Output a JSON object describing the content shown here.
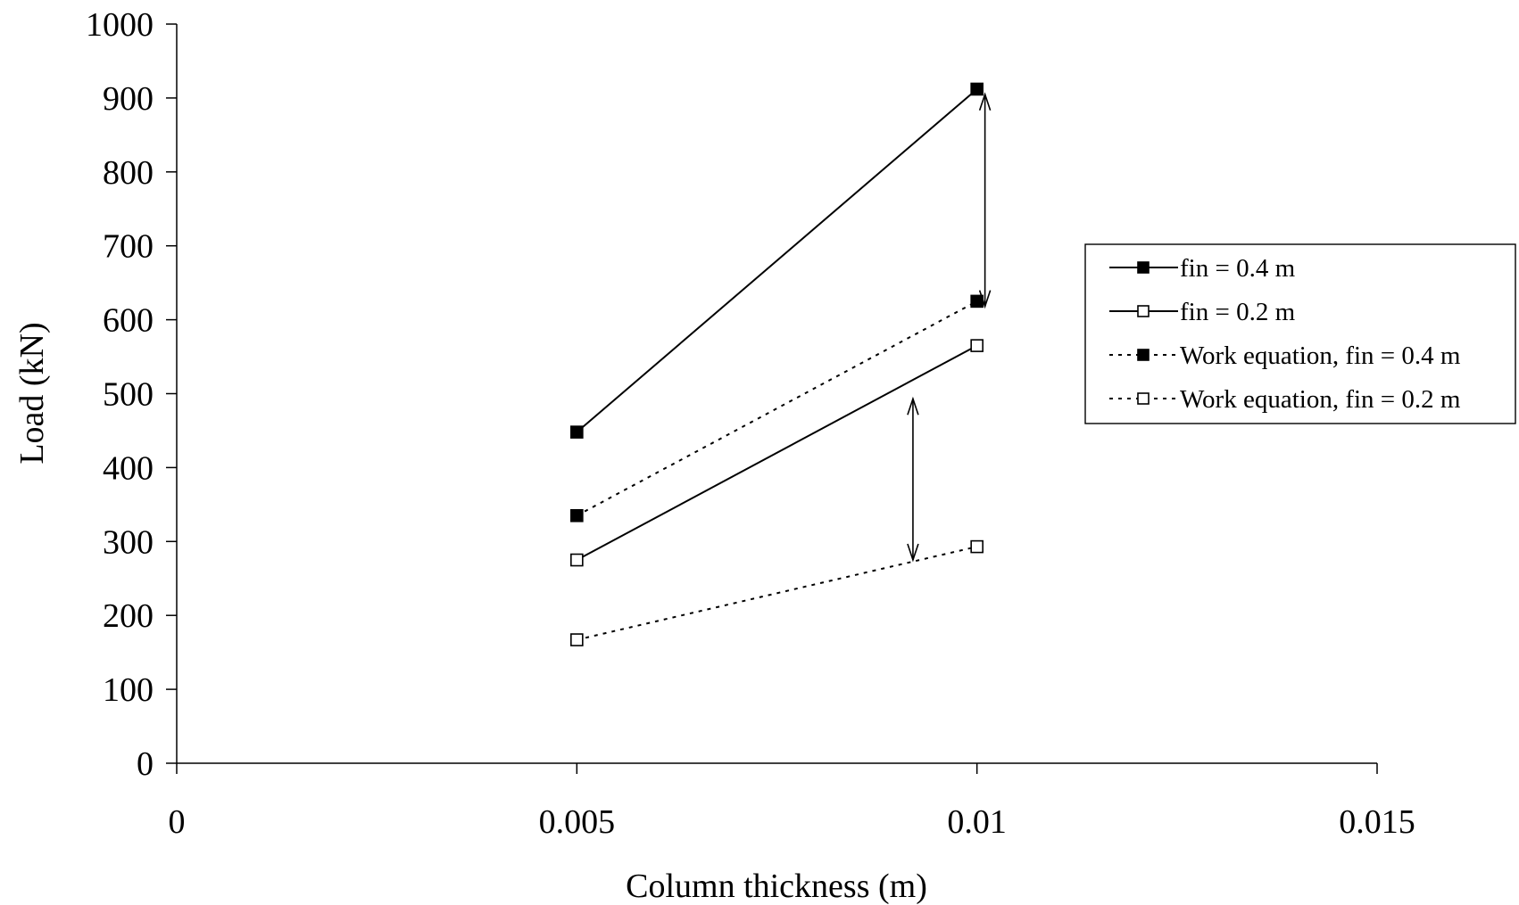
{
  "chart_data": {
    "type": "line",
    "title": "",
    "xlabel": "Column thickness (m)",
    "ylabel": "Load (kN)",
    "xlim": [
      0,
      0.015
    ],
    "ylim": [
      0,
      1000
    ],
    "x_ticks": [
      "0",
      "0.005",
      "0.01",
      "0.015"
    ],
    "y_ticks": [
      "0",
      "100",
      "200",
      "300",
      "400",
      "500",
      "600",
      "700",
      "800",
      "900",
      "1000"
    ],
    "grid": false,
    "legend_position": "right",
    "series": [
      {
        "name": "fin = 0.4 m",
        "x": [
          0.005,
          0.01
        ],
        "y": [
          448,
          912
        ],
        "line": "solid",
        "marker": "square-filled"
      },
      {
        "name": "fin = 0.2 m",
        "x": [
          0.005,
          0.01
        ],
        "y": [
          275,
          565
        ],
        "line": "solid",
        "marker": "square-open"
      },
      {
        "name": "Work equation, fin = 0.4 m",
        "x": [
          0.005,
          0.01
        ],
        "y": [
          335,
          625
        ],
        "line": "dotted",
        "marker": "square-filled"
      },
      {
        "name": "Work equation, fin = 0.2 m",
        "x": [
          0.005,
          0.01
        ],
        "y": [
          167,
          293
        ],
        "line": "dotted",
        "marker": "square-open"
      }
    ],
    "annotations": [
      {
        "type": "double-arrow",
        "x": [
          0.0101,
          0.0101
        ],
        "y": [
          905,
          618
        ]
      },
      {
        "type": "double-arrow",
        "x": [
          0.0092,
          0.0092
        ],
        "y": [
          493,
          275
        ]
      }
    ]
  }
}
